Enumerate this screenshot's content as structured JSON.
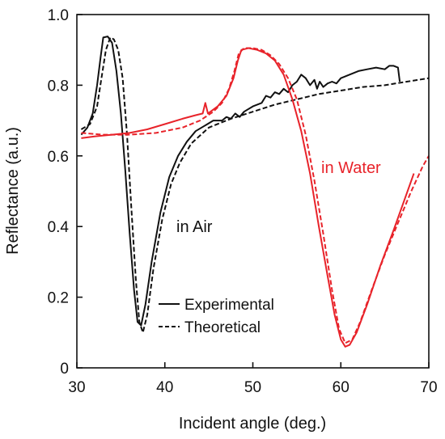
{
  "chart_data": {
    "type": "line",
    "xlabel": "Incident angle (deg.)",
    "ylabel": "Reflectance (a.u.)",
    "xlim": [
      30,
      70
    ],
    "ylim": [
      0,
      1.0
    ],
    "x_ticks": [
      "30",
      "40",
      "50",
      "60",
      "70"
    ],
    "y_ticks": [
      "0",
      "0.2",
      "0.4",
      "0.6",
      "0.8",
      "1.0"
    ],
    "x_tick_values": [
      30,
      40,
      50,
      60,
      70
    ],
    "y_tick_values": [
      0,
      0.2,
      0.4,
      0.6,
      0.8,
      1.0
    ],
    "grid": false,
    "legend_position": "lower-center",
    "legend": {
      "experimental": "Experimental",
      "theoretical": "Theoretical"
    },
    "annotations": {
      "air": "in Air",
      "water": "in Water"
    },
    "colors": {
      "air": "#111111",
      "water": "#e8232a"
    },
    "series": [
      {
        "key": "air-experimental",
        "group": "air",
        "style": "solid",
        "points": [
          [
            30.5,
            0.66
          ],
          [
            31.2,
            0.68
          ],
          [
            31.8,
            0.72
          ],
          [
            32.3,
            0.8
          ],
          [
            32.7,
            0.88
          ],
          [
            33.0,
            0.935
          ],
          [
            33.5,
            0.938
          ],
          [
            34.0,
            0.92
          ],
          [
            34.5,
            0.84
          ],
          [
            35.0,
            0.72
          ],
          [
            35.5,
            0.56
          ],
          [
            36.0,
            0.38
          ],
          [
            36.5,
            0.22
          ],
          [
            36.9,
            0.13
          ],
          [
            37.3,
            0.12
          ],
          [
            37.8,
            0.18
          ],
          [
            38.5,
            0.3
          ],
          [
            39.5,
            0.44
          ],
          [
            40.5,
            0.54
          ],
          [
            41.5,
            0.6
          ],
          [
            42.5,
            0.64
          ],
          [
            43.5,
            0.67
          ],
          [
            44.5,
            0.685
          ],
          [
            45.5,
            0.7
          ],
          [
            46.5,
            0.7
          ],
          [
            47.0,
            0.71
          ],
          [
            47.5,
            0.705
          ],
          [
            48.0,
            0.72
          ],
          [
            48.5,
            0.71
          ],
          [
            49.0,
            0.725
          ],
          [
            50.0,
            0.74
          ],
          [
            51.0,
            0.75
          ],
          [
            51.5,
            0.77
          ],
          [
            52.0,
            0.765
          ],
          [
            52.5,
            0.78
          ],
          [
            53.0,
            0.775
          ],
          [
            53.5,
            0.79
          ],
          [
            54.0,
            0.78
          ],
          [
            54.5,
            0.8
          ],
          [
            55.0,
            0.81
          ],
          [
            55.5,
            0.83
          ],
          [
            56.0,
            0.82
          ],
          [
            56.5,
            0.8
          ],
          [
            57.0,
            0.815
          ],
          [
            57.3,
            0.79
          ],
          [
            57.6,
            0.81
          ],
          [
            58.0,
            0.795
          ],
          [
            58.5,
            0.805
          ],
          [
            59.0,
            0.81
          ],
          [
            59.5,
            0.805
          ],
          [
            60.0,
            0.82
          ],
          [
            61.0,
            0.83
          ],
          [
            62.0,
            0.84
          ],
          [
            63.0,
            0.845
          ],
          [
            64.0,
            0.85
          ],
          [
            65.0,
            0.845
          ],
          [
            65.5,
            0.855
          ],
          [
            66.0,
            0.855
          ],
          [
            66.5,
            0.85
          ],
          [
            66.7,
            0.81
          ]
        ]
      },
      {
        "key": "air-theoretical",
        "group": "air",
        "style": "dashed",
        "points": [
          [
            30.5,
            0.675
          ],
          [
            31.5,
            0.69
          ],
          [
            32.3,
            0.74
          ],
          [
            32.8,
            0.82
          ],
          [
            33.3,
            0.9
          ],
          [
            33.8,
            0.935
          ],
          [
            34.2,
            0.93
          ],
          [
            34.7,
            0.9
          ],
          [
            35.2,
            0.82
          ],
          [
            35.7,
            0.66
          ],
          [
            36.2,
            0.45
          ],
          [
            36.7,
            0.25
          ],
          [
            37.1,
            0.13
          ],
          [
            37.5,
            0.1
          ],
          [
            38.0,
            0.15
          ],
          [
            38.7,
            0.28
          ],
          [
            39.7,
            0.42
          ],
          [
            40.7,
            0.52
          ],
          [
            41.7,
            0.58
          ],
          [
            43.0,
            0.635
          ],
          [
            45.0,
            0.68
          ],
          [
            47.5,
            0.705
          ],
          [
            50.0,
            0.725
          ],
          [
            52.5,
            0.745
          ],
          [
            55.0,
            0.76
          ],
          [
            57.5,
            0.775
          ],
          [
            60.0,
            0.785
          ],
          [
            62.5,
            0.795
          ],
          [
            65.0,
            0.8
          ],
          [
            67.5,
            0.81
          ],
          [
            70.0,
            0.82
          ]
        ]
      },
      {
        "key": "water-experimental",
        "group": "water",
        "style": "solid",
        "points": [
          [
            30.5,
            0.65
          ],
          [
            32.0,
            0.655
          ],
          [
            34.0,
            0.66
          ],
          [
            36.0,
            0.665
          ],
          [
            38.0,
            0.675
          ],
          [
            40.0,
            0.69
          ],
          [
            42.0,
            0.705
          ],
          [
            43.5,
            0.715
          ],
          [
            44.3,
            0.72
          ],
          [
            44.6,
            0.75
          ],
          [
            44.9,
            0.72
          ],
          [
            46.0,
            0.74
          ],
          [
            47.0,
            0.77
          ],
          [
            47.8,
            0.82
          ],
          [
            48.3,
            0.87
          ],
          [
            48.7,
            0.9
          ],
          [
            49.5,
            0.905
          ],
          [
            50.5,
            0.9
          ],
          [
            51.5,
            0.89
          ],
          [
            52.5,
            0.87
          ],
          [
            53.5,
            0.83
          ],
          [
            54.5,
            0.76
          ],
          [
            55.5,
            0.67
          ],
          [
            56.5,
            0.55
          ],
          [
            57.5,
            0.4
          ],
          [
            58.5,
            0.26
          ],
          [
            59.3,
            0.15
          ],
          [
            60.0,
            0.08
          ],
          [
            60.5,
            0.06
          ],
          [
            61.0,
            0.065
          ],
          [
            61.8,
            0.1
          ],
          [
            63.0,
            0.18
          ],
          [
            64.5,
            0.29
          ],
          [
            66.0,
            0.39
          ],
          [
            67.3,
            0.48
          ],
          [
            68.3,
            0.55
          ]
        ]
      },
      {
        "key": "water-theoretical",
        "group": "water",
        "style": "dashed",
        "points": [
          [
            30.5,
            0.665
          ],
          [
            33.0,
            0.66
          ],
          [
            36.0,
            0.66
          ],
          [
            39.0,
            0.665
          ],
          [
            42.0,
            0.68
          ],
          [
            44.0,
            0.7
          ],
          [
            45.5,
            0.725
          ],
          [
            46.5,
            0.75
          ],
          [
            47.3,
            0.79
          ],
          [
            47.9,
            0.84
          ],
          [
            48.4,
            0.89
          ],
          [
            49.0,
            0.905
          ],
          [
            50.0,
            0.905
          ],
          [
            51.0,
            0.9
          ],
          [
            52.0,
            0.885
          ],
          [
            53.0,
            0.86
          ],
          [
            54.0,
            0.82
          ],
          [
            55.0,
            0.76
          ],
          [
            56.0,
            0.66
          ],
          [
            57.0,
            0.53
          ],
          [
            58.0,
            0.38
          ],
          [
            59.0,
            0.22
          ],
          [
            59.8,
            0.11
          ],
          [
            60.5,
            0.07
          ],
          [
            61.3,
            0.08
          ],
          [
            62.2,
            0.13
          ],
          [
            63.5,
            0.22
          ],
          [
            65.0,
            0.32
          ],
          [
            66.5,
            0.41
          ],
          [
            68.0,
            0.5
          ],
          [
            69.3,
            0.57
          ],
          [
            70.0,
            0.6
          ]
        ]
      }
    ]
  }
}
